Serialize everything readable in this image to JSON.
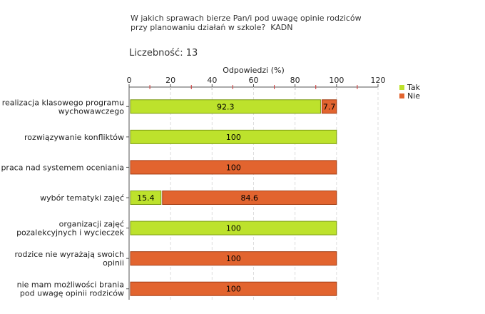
{
  "chart_data": {
    "type": "bar",
    "orientation": "horizontal",
    "stacked": true,
    "title": "W jakich sprawach bierze Pan/i pod uwagę opinie rodziców\nprzy planowaniu działań w szkole?  KADN",
    "count_label": "Liczebność:  13",
    "xlabel": "Odpowiedzi (%)",
    "xlim": [
      0,
      120
    ],
    "xticks": [
      0,
      20,
      40,
      60,
      80,
      100,
      120
    ],
    "grid": true,
    "legend_position": "right",
    "categories": [
      "realizacja klasowego programu\nwychowawczego",
      "rozwiązywanie konfliktów",
      "praca nad systemem oceniania",
      "wybór tematyki zajęć",
      "organizacji zajęć\npozalekcyjnych i wycieczek",
      "rodzice nie wyrażają swoich\nopinii",
      "nie mam możliwości brania\npod uwagę opinii rodziców"
    ],
    "series": [
      {
        "name": "Tak",
        "color": "#bde22c",
        "border": "#7a9a10",
        "values": [
          92.3,
          100,
          0,
          15.4,
          100,
          0,
          0
        ]
      },
      {
        "name": "Nie",
        "color": "#e2642f",
        "border": "#a33c12",
        "values": [
          7.7,
          0,
          100,
          84.6,
          0,
          100,
          100
        ]
      }
    ]
  }
}
